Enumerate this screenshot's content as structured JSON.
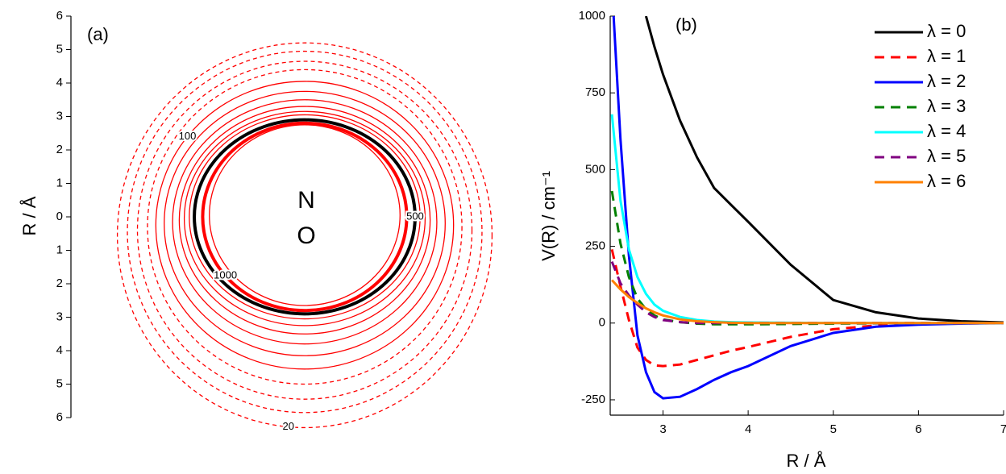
{
  "chart_data": [
    {
      "type": "contour",
      "title": "(a)",
      "y_label": "R / Å",
      "center_labels": [
        "N",
        "O"
      ],
      "ylim": [
        -6,
        6
      ],
      "yticks": [
        {
          "value": -6,
          "label": "6"
        },
        {
          "value": -5,
          "label": "5"
        },
        {
          "value": -4,
          "label": "4"
        },
        {
          "value": -3,
          "label": "3"
        },
        {
          "value": -2,
          "label": "2"
        },
        {
          "value": -1,
          "label": "1"
        },
        0,
        1,
        2,
        3,
        4,
        5,
        6
      ],
      "contours": [
        {
          "cy": -0.55,
          "rx": 5.6,
          "ry": 5.75,
          "color": "#ff0000",
          "dashed": true,
          "level": 20
        },
        {
          "cy": -0.45,
          "rx": 5.3,
          "ry": 5.4,
          "color": "#ff0000",
          "dashed": true
        },
        {
          "cy": -0.4,
          "rx": 5.0,
          "ry": 5.05,
          "color": "#ff0000",
          "dashed": true
        },
        {
          "cy": -0.3,
          "rx": 4.7,
          "ry": 4.7,
          "color": "#ff0000",
          "dashed": true
        },
        {
          "cy": -0.25,
          "rx": 4.45,
          "ry": 4.3,
          "color": "#ff0000",
          "dashed": false,
          "level": 100
        },
        {
          "cy": -0.2,
          "rx": 4.2,
          "ry": 3.95,
          "color": "#ff0000",
          "dashed": false
        },
        {
          "cy": -0.15,
          "rx": 3.95,
          "ry": 3.65,
          "color": "#ff0000",
          "dashed": false
        },
        {
          "cy": -0.1,
          "rx": 3.75,
          "ry": 3.4,
          "color": "#ff0000",
          "dashed": false
        },
        {
          "cy": -0.05,
          "rx": 3.6,
          "ry": 3.2,
          "color": "#ff0000",
          "dashed": false
        },
        {
          "cy": 0,
          "rx": 3.45,
          "ry": 3.05,
          "color": "#ff0000",
          "dashed": false
        },
        {
          "cy": 0,
          "rx": 3.3,
          "ry": 2.9,
          "color": "#000000",
          "dashed": false,
          "level": 500
        },
        {
          "cy": 0,
          "rx": 3.05,
          "ry": 2.8,
          "color": "#ff0000",
          "dashed": false,
          "level": 1000
        },
        {
          "cy": 0.05,
          "rx": 2.85,
          "ry": 2.7,
          "color": "#ff0000",
          "dashed": false
        }
      ]
    },
    {
      "type": "line",
      "title": "(b)",
      "x_label": "R / Å",
      "y_label": "V(R) / cm⁻¹",
      "xlim": [
        2.38,
        7
      ],
      "ylim": [
        -300,
        1000
      ],
      "xticks": [
        3,
        4,
        5,
        6,
        7
      ],
      "yticks": [
        -250,
        0,
        250,
        500,
        750,
        1000
      ],
      "legend": "upper right",
      "x": [
        2.4,
        2.5,
        2.6,
        2.7,
        2.8,
        2.9,
        3,
        3.2,
        3.4,
        3.6,
        3.8,
        4,
        4.5,
        5,
        5.5,
        6,
        6.5,
        7
      ],
      "series": [
        {
          "name": "λ = 0",
          "color": "#000000",
          "dashed": false,
          "values": [
            null,
            null,
            null,
            null,
            1000,
            900,
            810,
            660,
            540,
            440,
            385,
            330,
            190,
            75,
            35,
            15,
            6,
            2
          ]
        },
        {
          "name": "λ = 1",
          "color": "#ff0000",
          "dashed": true,
          "values": [
            240,
            120,
            10,
            -80,
            -120,
            -138,
            -140,
            -135,
            -120,
            -105,
            -90,
            -78,
            -45,
            -20,
            -8,
            -3,
            -1,
            0
          ]
        },
        {
          "name": "λ = 2",
          "color": "#0000ff",
          "dashed": false,
          "values": [
            1100,
            600,
            220,
            -40,
            -160,
            -225,
            -245,
            -240,
            -215,
            -185,
            -160,
            -140,
            -75,
            -32,
            -12,
            -5,
            -2,
            0
          ]
        },
        {
          "name": "λ = 3",
          "color": "#008000",
          "dashed": true,
          "values": [
            430,
            260,
            150,
            80,
            45,
            25,
            12,
            3,
            -2,
            -4,
            -4,
            -4,
            -3,
            -2,
            -1,
            0,
            0,
            0
          ]
        },
        {
          "name": "λ = 4",
          "color": "#00ffff",
          "dashed": false,
          "values": [
            680,
            400,
            240,
            150,
            95,
            60,
            40,
            20,
            10,
            5,
            3,
            2,
            1,
            0,
            0,
            0,
            0,
            0
          ]
        },
        {
          "name": "λ = 5",
          "color": "#800080",
          "dashed": true,
          "values": [
            200,
            130,
            90,
            60,
            35,
            20,
            10,
            3,
            0,
            0,
            0,
            0,
            0,
            0,
            0,
            0,
            0,
            0
          ]
        },
        {
          "name": "λ = 6",
          "color": "#ff8000",
          "dashed": false,
          "values": [
            140,
            110,
            85,
            65,
            48,
            35,
            25,
            12,
            6,
            3,
            1,
            0,
            0,
            0,
            0,
            0,
            0,
            0
          ]
        }
      ]
    }
  ]
}
